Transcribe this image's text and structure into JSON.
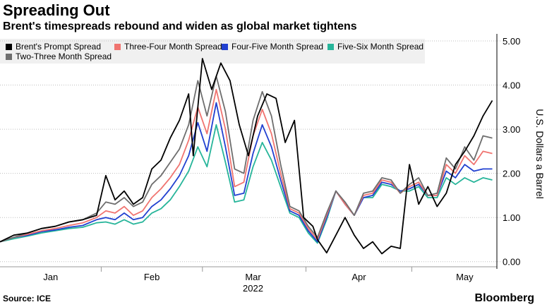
{
  "title": "Spreading Out",
  "subtitle": "Brent's timespreads rebound and widen as global market tightens",
  "source": "Source: ICE",
  "brand": "Bloomberg",
  "chart_data": {
    "type": "line",
    "title": "Spreading Out",
    "subtitle": "Brent's timespreads rebound and widen as global market tightens",
    "ylabel": "U.S. Dollars a Barrel",
    "ylim": [
      -0.1,
      5.0
    ],
    "yticks": [
      0,
      1,
      2,
      3,
      4,
      5
    ],
    "ytick_labels": [
      "0.00",
      "1.00",
      "2.00",
      "3.00",
      "4.00",
      "5.00"
    ],
    "xlim": [
      0,
      108
    ],
    "xticks": [
      {
        "label": "Jan",
        "at": 11
      },
      {
        "label": "Feb",
        "at": 33
      },
      {
        "label": "Mar",
        "at": 55
      },
      {
        "label": "Apr",
        "at": 78
      },
      {
        "label": "May",
        "at": 101
      }
    ],
    "year_label": "2022",
    "grid": "horizontal",
    "y_axis_side": "right",
    "legend_position": "top",
    "series": [
      {
        "name": "Brent's Prompt Spread",
        "color": "#000000",
        "x": [
          0,
          3,
          6,
          9,
          12,
          15,
          18,
          21,
          23,
          25,
          27,
          29,
          31,
          33,
          35,
          37,
          39,
          41,
          42,
          44,
          46,
          48,
          50,
          52,
          54,
          56,
          58,
          60,
          62,
          64,
          66,
          68,
          69,
          71,
          73,
          75,
          77,
          79,
          81,
          83,
          85,
          87,
          89,
          91,
          93,
          95,
          97,
          99,
          101,
          103,
          105,
          107
        ],
        "y": [
          0.45,
          0.6,
          0.65,
          0.75,
          0.8,
          0.9,
          0.95,
          1.05,
          1.95,
          1.4,
          1.6,
          1.3,
          1.45,
          2.1,
          2.3,
          2.8,
          3.2,
          3.8,
          2.4,
          4.6,
          3.9,
          4.5,
          4.1,
          3.1,
          2.4,
          3.3,
          3.8,
          3.7,
          2.7,
          3.2,
          1.0,
          0.8,
          0.5,
          0.2,
          0.6,
          1.0,
          0.6,
          0.3,
          0.45,
          0.18,
          0.35,
          0.3,
          2.2,
          1.3,
          1.7,
          1.25,
          1.55,
          2.2,
          2.5,
          2.85,
          3.3,
          3.65
        ]
      },
      {
        "name": "Two-Three Month Spread",
        "color": "#6e6e6e",
        "x": [
          0,
          3,
          6,
          9,
          12,
          15,
          18,
          21,
          23,
          25,
          27,
          29,
          31,
          33,
          35,
          37,
          39,
          41,
          43,
          45,
          47,
          49,
          51,
          53,
          55,
          57,
          59,
          61,
          63,
          65,
          67,
          69,
          71,
          73,
          75,
          77,
          79,
          81,
          83,
          85,
          87,
          89,
          91,
          93,
          95,
          97,
          99,
          101,
          103,
          105,
          107
        ],
        "y": [
          0.45,
          0.55,
          0.65,
          0.75,
          0.8,
          0.9,
          0.95,
          1.1,
          1.35,
          1.3,
          1.45,
          1.25,
          1.35,
          1.75,
          1.95,
          2.25,
          2.55,
          3.1,
          4.1,
          3.3,
          4.2,
          3.4,
          2.1,
          2.0,
          3.2,
          3.85,
          3.3,
          2.2,
          1.25,
          1.15,
          0.8,
          0.55,
          1.1,
          1.6,
          1.35,
          1.05,
          1.55,
          1.6,
          1.9,
          1.85,
          1.55,
          1.75,
          1.9,
          1.5,
          1.55,
          2.35,
          2.1,
          2.6,
          2.3,
          2.85,
          2.8
        ]
      },
      {
        "name": "Three-Four Month Spread",
        "color": "#f07470",
        "x": [
          0,
          3,
          6,
          9,
          12,
          15,
          18,
          21,
          23,
          25,
          27,
          29,
          31,
          33,
          35,
          37,
          39,
          41,
          43,
          45,
          47,
          49,
          51,
          53,
          55,
          57,
          59,
          61,
          63,
          65,
          67,
          69,
          71,
          73,
          75,
          77,
          79,
          81,
          83,
          85,
          87,
          89,
          91,
          93,
          95,
          97,
          99,
          101,
          103,
          105,
          107
        ],
        "y": [
          0.45,
          0.55,
          0.62,
          0.7,
          0.75,
          0.82,
          0.88,
          1.0,
          1.15,
          1.1,
          1.25,
          1.05,
          1.15,
          1.45,
          1.65,
          1.9,
          2.2,
          2.75,
          3.5,
          2.9,
          3.9,
          3.0,
          1.7,
          1.8,
          2.85,
          3.45,
          2.9,
          2.0,
          1.2,
          1.1,
          0.75,
          0.5,
          1.05,
          1.6,
          1.3,
          1.05,
          1.5,
          1.55,
          1.85,
          1.8,
          1.55,
          1.7,
          1.8,
          1.5,
          1.5,
          2.2,
          2.0,
          2.4,
          2.2,
          2.5,
          2.45
        ]
      },
      {
        "name": "Four-Five Month Spread",
        "color": "#2140d0",
        "x": [
          0,
          3,
          6,
          9,
          12,
          15,
          18,
          21,
          23,
          25,
          27,
          29,
          31,
          33,
          35,
          37,
          39,
          41,
          43,
          45,
          47,
          49,
          51,
          53,
          55,
          57,
          59,
          61,
          63,
          65,
          67,
          69,
          71,
          73,
          75,
          77,
          79,
          81,
          83,
          85,
          87,
          89,
          91,
          93,
          95,
          97,
          99,
          101,
          103,
          105,
          107
        ],
        "y": [
          0.45,
          0.55,
          0.6,
          0.68,
          0.72,
          0.78,
          0.82,
          0.95,
          1.0,
          0.95,
          1.1,
          0.95,
          1.0,
          1.25,
          1.4,
          1.65,
          1.95,
          2.4,
          3.15,
          2.5,
          3.6,
          2.6,
          1.5,
          1.55,
          2.45,
          3.1,
          2.6,
          1.85,
          1.15,
          1.05,
          0.7,
          0.45,
          1.0,
          1.6,
          1.3,
          1.05,
          1.45,
          1.5,
          1.8,
          1.75,
          1.6,
          1.65,
          1.75,
          1.5,
          1.5,
          2.05,
          1.9,
          2.2,
          2.05,
          2.1,
          2.1
        ]
      },
      {
        "name": "Five-Six Month Spread",
        "color": "#27b59a",
        "x": [
          0,
          3,
          6,
          9,
          12,
          15,
          18,
          21,
          23,
          25,
          27,
          29,
          31,
          33,
          35,
          37,
          39,
          41,
          43,
          45,
          47,
          49,
          51,
          53,
          55,
          57,
          59,
          61,
          63,
          65,
          67,
          69,
          71,
          73,
          75,
          77,
          79,
          81,
          83,
          85,
          87,
          89,
          91,
          93,
          95,
          97,
          99,
          101,
          103,
          105,
          107
        ],
        "y": [
          0.45,
          0.52,
          0.58,
          0.65,
          0.7,
          0.75,
          0.78,
          0.88,
          0.9,
          0.85,
          0.95,
          0.85,
          0.9,
          1.1,
          1.2,
          1.4,
          1.7,
          2.05,
          2.6,
          2.15,
          3.1,
          2.25,
          1.35,
          1.4,
          2.15,
          2.7,
          2.3,
          1.7,
          1.1,
          1.0,
          0.65,
          0.42,
          0.95,
          1.6,
          1.3,
          1.05,
          1.45,
          1.45,
          1.75,
          1.7,
          1.6,
          1.6,
          1.7,
          1.45,
          1.45,
          1.9,
          1.75,
          1.9,
          1.8,
          1.9,
          1.85
        ]
      }
    ]
  }
}
